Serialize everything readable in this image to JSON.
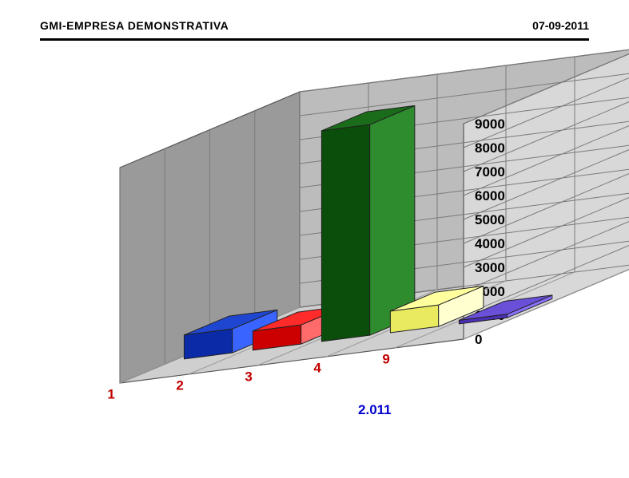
{
  "header": {
    "title": "GMI-EMPRESA DEMONSTRATIVA",
    "date": "07-09-2011"
  },
  "chart": {
    "type": "bar3d",
    "categories": [
      "1",
      "2",
      "3",
      "4",
      "9"
    ],
    "values": [
      1000,
      800,
      8800,
      900,
      150
    ],
    "bar_colors_top": [
      "#1f46d1",
      "#ff2a2a",
      "#1a6b1a",
      "#ffff9e",
      "#6a4fd8"
    ],
    "bar_colors_front": [
      "#0a2aa8",
      "#cc0000",
      "#0b4d0b",
      "#eaea60",
      "#4b2fb5"
    ],
    "bar_colors_side": [
      "#3a64ff",
      "#ff6a6a",
      "#2e8b2e",
      "#ffffcf",
      "#8a72ff"
    ],
    "series_label": "2.011",
    "y_ticks": [
      0,
      1000,
      2000,
      3000,
      4000,
      5000,
      6000,
      7000,
      8000,
      9000
    ],
    "y_max": 9000,
    "axis_font_size": 17,
    "category_label_color": "#c00000",
    "series_label_color": "#0000cd",
    "wall_fill": "#bcbcbc",
    "wall_shadow": "#9a9a9a",
    "wall_light": "#d8d8d8",
    "floor_fill": "#cfcfcf",
    "grid_color": "#7a7a7a",
    "background_color": "#ffffff"
  }
}
